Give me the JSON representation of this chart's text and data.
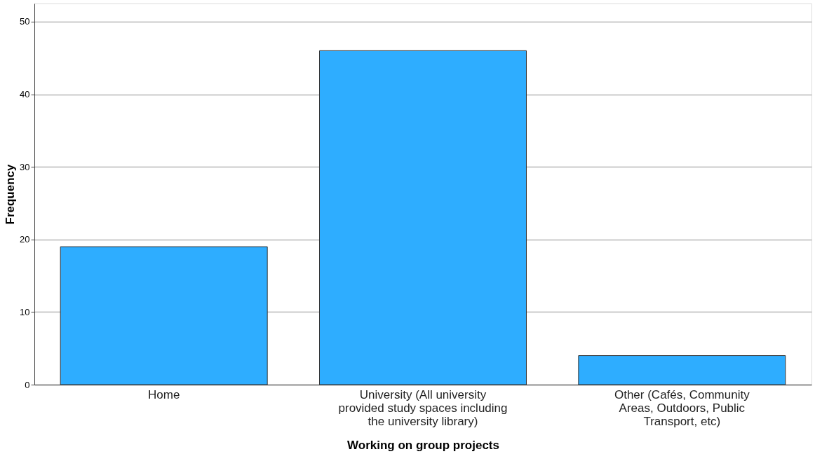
{
  "chart_data": {
    "type": "bar",
    "xlabel": "Working on group projects",
    "ylabel": "Frequency",
    "categories": [
      "Home",
      "University (All university\nprovided study spaces including\nthe university library)",
      "Other (Cafés, Community\nAreas, Outdoors, Public\nTransport, etc)"
    ],
    "values": [
      19,
      46,
      4
    ],
    "color": "#2eadff",
    "ylim": [
      0,
      52.5
    ],
    "yticks": [
      0,
      10,
      20,
      30,
      40,
      50
    ],
    "grid": "y"
  }
}
